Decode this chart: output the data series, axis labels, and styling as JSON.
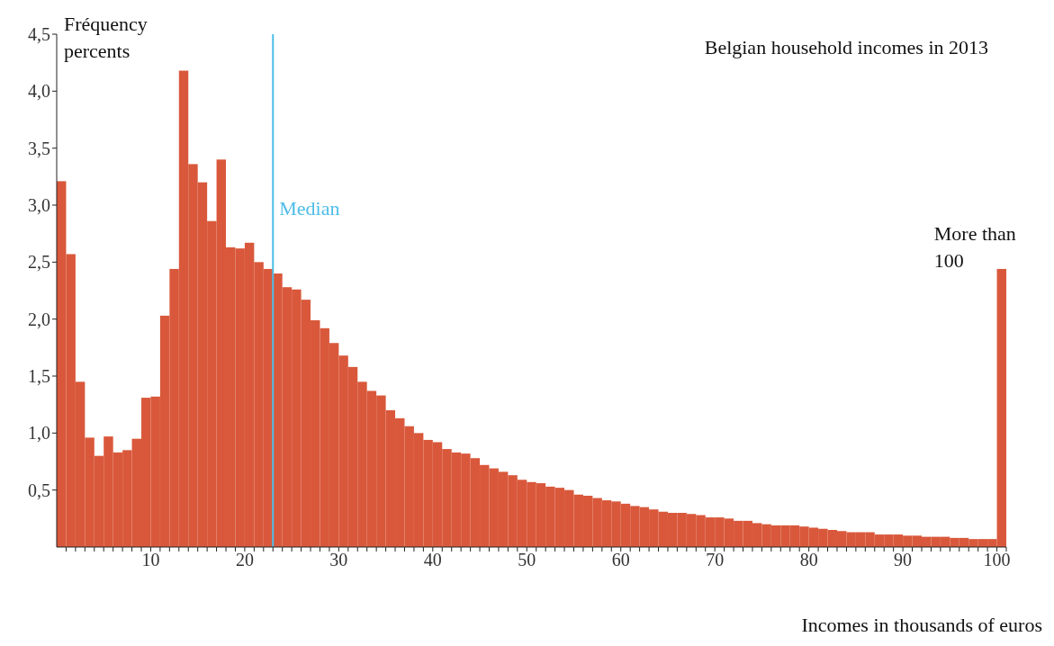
{
  "chart_data": {
    "type": "histogram",
    "title": "Belgian household incomes in 2013",
    "xlabel": "Incomes in thousands of euros",
    "ylabel": "Fréquency percents",
    "color": "#d9583b",
    "bins": [
      0,
      1,
      2,
      3,
      4,
      5,
      6,
      7,
      8,
      9,
      10,
      11,
      12,
      13,
      14,
      15,
      16,
      17,
      18,
      19,
      20,
      21,
      22,
      23,
      24,
      25,
      26,
      27,
      28,
      29,
      30,
      31,
      32,
      33,
      34,
      35,
      36,
      37,
      38,
      39,
      40,
      41,
      42,
      43,
      44,
      45,
      46,
      47,
      48,
      49,
      50,
      51,
      52,
      53,
      54,
      55,
      56,
      57,
      58,
      59,
      60,
      61,
      62,
      63,
      64,
      65,
      66,
      67,
      68,
      69,
      70,
      71,
      72,
      73,
      74,
      75,
      76,
      77,
      78,
      79,
      80,
      81,
      82,
      83,
      84,
      85,
      86,
      87,
      88,
      89,
      90,
      91,
      92,
      93,
      94,
      95,
      96,
      97,
      98,
      99,
      100,
      101
    ],
    "values": [
      3.21,
      2.57,
      1.45,
      0.96,
      0.8,
      0.97,
      0.83,
      0.85,
      0.95,
      1.31,
      1.32,
      2.03,
      2.44,
      4.18,
      3.36,
      3.2,
      2.86,
      3.4,
      2.63,
      2.62,
      2.67,
      2.5,
      2.44,
      2.4,
      2.28,
      2.26,
      2.17,
      1.99,
      1.92,
      1.79,
      1.68,
      1.58,
      1.45,
      1.37,
      1.33,
      1.2,
      1.13,
      1.06,
      1.0,
      0.94,
      0.92,
      0.86,
      0.83,
      0.82,
      0.78,
      0.72,
      0.69,
      0.66,
      0.63,
      0.59,
      0.57,
      0.56,
      0.53,
      0.52,
      0.5,
      0.46,
      0.45,
      0.43,
      0.41,
      0.4,
      0.38,
      0.36,
      0.35,
      0.33,
      0.31,
      0.3,
      0.3,
      0.29,
      0.28,
      0.26,
      0.26,
      0.25,
      0.23,
      0.23,
      0.21,
      0.2,
      0.19,
      0.19,
      0.19,
      0.18,
      0.17,
      0.16,
      0.15,
      0.14,
      0.13,
      0.13,
      0.13,
      0.11,
      0.11,
      0.11,
      0.1,
      0.1,
      0.09,
      0.09,
      0.09,
      0.08,
      0.08,
      0.07,
      0.07,
      0.07,
      2.44
    ],
    "xlim": [
      0,
      101
    ],
    "xticks": [
      {
        "value": 1,
        "label": null
      },
      {
        "value": 2,
        "label": null
      },
      {
        "value": 3,
        "label": null
      },
      {
        "value": 4,
        "label": null
      },
      {
        "value": 5,
        "label": null
      },
      {
        "value": 6,
        "label": null
      },
      {
        "value": 7,
        "label": null
      },
      {
        "value": 8,
        "label": null
      },
      {
        "value": 9,
        "label": null
      },
      10,
      {
        "value": 11,
        "label": null
      },
      {
        "value": 12,
        "label": null
      },
      {
        "value": 13,
        "label": null
      },
      {
        "value": 14,
        "label": null
      },
      {
        "value": 15,
        "label": null
      },
      {
        "value": 16,
        "label": null
      },
      {
        "value": 17,
        "label": null
      },
      {
        "value": 18,
        "label": null
      },
      {
        "value": 19,
        "label": null
      },
      20,
      {
        "value": 21,
        "label": null
      },
      {
        "value": 22,
        "label": null
      },
      {
        "value": 23,
        "label": null
      },
      {
        "value": 24,
        "label": null
      },
      {
        "value": 25,
        "label": null
      },
      {
        "value": 26,
        "label": null
      },
      {
        "value": 27,
        "label": null
      },
      {
        "value": 28,
        "label": null
      },
      {
        "value": 29,
        "label": null
      },
      30,
      {
        "value": 31,
        "label": null
      },
      {
        "value": 32,
        "label": null
      },
      {
        "value": 33,
        "label": null
      },
      {
        "value": 34,
        "label": null
      },
      {
        "value": 35,
        "label": null
      },
      {
        "value": 36,
        "label": null
      },
      {
        "value": 37,
        "label": null
      },
      {
        "value": 38,
        "label": null
      },
      {
        "value": 39,
        "label": null
      },
      40,
      {
        "value": 41,
        "label": null
      },
      {
        "value": 42,
        "label": null
      },
      {
        "value": 43,
        "label": null
      },
      {
        "value": 44,
        "label": null
      },
      {
        "value": 45,
        "label": null
      },
      {
        "value": 46,
        "label": null
      },
      {
        "value": 47,
        "label": null
      },
      {
        "value": 48,
        "label": null
      },
      {
        "value": 49,
        "label": null
      },
      50,
      {
        "value": 51,
        "label": null
      },
      {
        "value": 52,
        "label": null
      },
      {
        "value": 53,
        "label": null
      },
      {
        "value": 54,
        "label": null
      },
      {
        "value": 55,
        "label": null
      },
      {
        "value": 56,
        "label": null
      },
      {
        "value": 57,
        "label": null
      },
      {
        "value": 58,
        "label": null
      },
      {
        "value": 59,
        "label": null
      },
      60,
      {
        "value": 61,
        "label": null
      },
      {
        "value": 62,
        "label": null
      },
      {
        "value": 63,
        "label": null
      },
      {
        "value": 64,
        "label": null
      },
      {
        "value": 65,
        "label": null
      },
      {
        "value": 66,
        "label": null
      },
      {
        "value": 67,
        "label": null
      },
      {
        "value": 68,
        "label": null
      },
      {
        "value": 69,
        "label": null
      },
      70,
      {
        "value": 71,
        "label": null
      },
      {
        "value": 72,
        "label": null
      },
      {
        "value": 73,
        "label": null
      },
      {
        "value": 74,
        "label": null
      },
      {
        "value": 75,
        "label": null
      },
      {
        "value": 76,
        "label": null
      },
      {
        "value": 77,
        "label": null
      },
      {
        "value": 78,
        "label": null
      },
      {
        "value": 79,
        "label": null
      },
      80,
      {
        "value": 81,
        "label": null
      },
      {
        "value": 82,
        "label": null
      },
      {
        "value": 83,
        "label": null
      },
      {
        "value": 84,
        "label": null
      },
      {
        "value": 85,
        "label": null
      },
      {
        "value": 86,
        "label": null
      },
      {
        "value": 87,
        "label": null
      },
      {
        "value": 88,
        "label": null
      },
      {
        "value": 89,
        "label": null
      },
      90,
      {
        "value": 91,
        "label": null
      },
      {
        "value": 92,
        "label": null
      },
      {
        "value": 93,
        "label": null
      },
      {
        "value": 94,
        "label": null
      },
      {
        "value": 95,
        "label": null
      },
      {
        "value": 96,
        "label": null
      },
      {
        "value": 97,
        "label": null
      },
      {
        "value": 98,
        "label": null
      },
      {
        "value": 99,
        "label": null
      },
      100,
      {
        "value": 101,
        "label": null
      }
    ],
    "ylim": [
      0,
      4.5
    ],
    "yticks": [
      {
        "value": 0.5,
        "label": "0,5"
      },
      {
        "value": 1,
        "label": "1,0"
      },
      {
        "value": 1.5,
        "label": "1,5"
      },
      {
        "value": 2,
        "label": "2,0"
      },
      {
        "value": 2.5,
        "label": "2,5"
      },
      {
        "value": 3,
        "label": "3,0"
      },
      {
        "value": 3.5,
        "label": "3,5"
      },
      {
        "value": 4,
        "label": "4,0"
      },
      {
        "value": 4.5,
        "label": "4,5"
      }
    ],
    "ref_lines": [
      {
        "axis": "x",
        "value": 23,
        "label": "Median",
        "color": "#4dbde8"
      }
    ],
    "annotations": [
      {
        "text": "More than 100",
        "x": 100.5,
        "y": 2.44
      }
    ]
  }
}
